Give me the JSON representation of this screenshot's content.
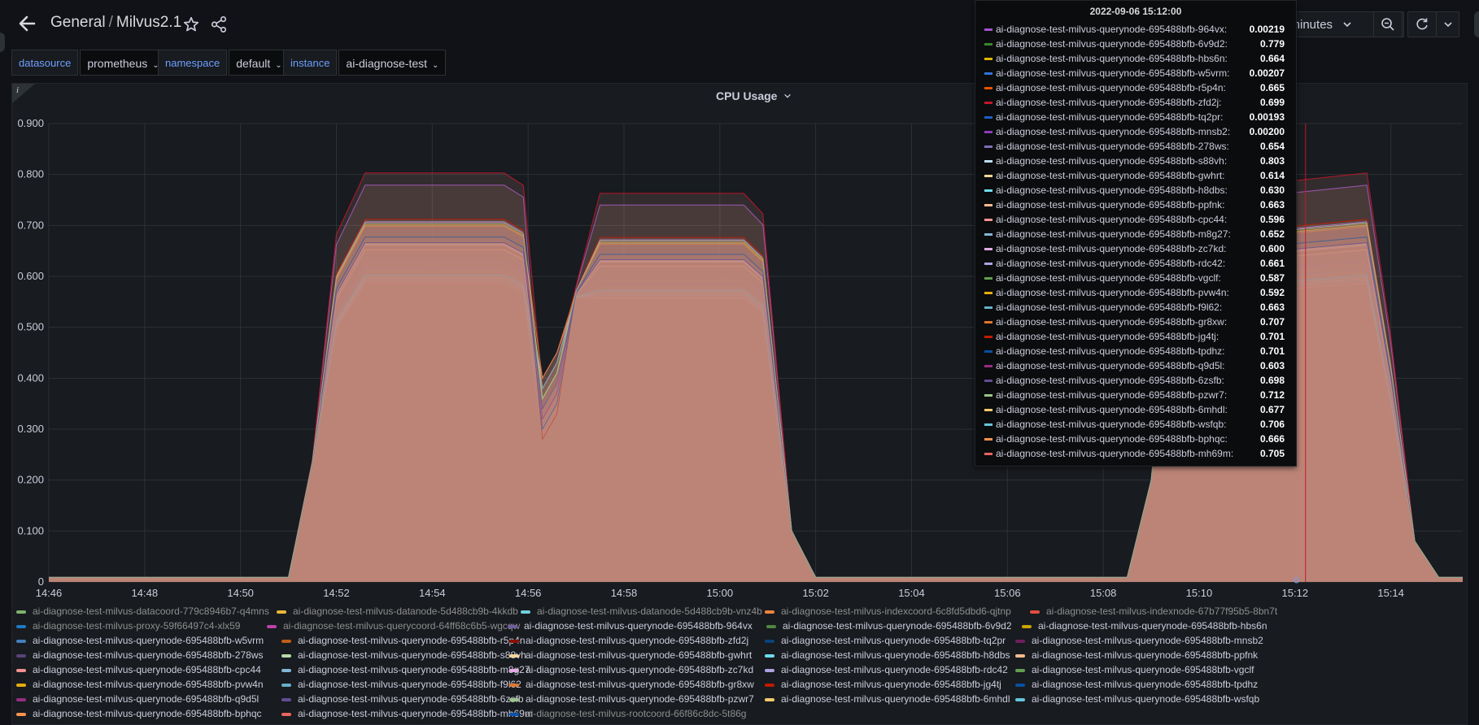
{
  "header": {
    "folder": "General",
    "dashboard": "Milvus2.1",
    "time_range_label": "0 minutes"
  },
  "variables": [
    {
      "label": "datasource",
      "value": "prometheus"
    },
    {
      "label": "namespace",
      "value": "default"
    },
    {
      "label": "instance",
      "value": "ai-diagnose-test"
    }
  ],
  "panel": {
    "title": "CPU Usage",
    "info": "i"
  },
  "colors": {
    "bg": "#111217",
    "panel": "#181b1f",
    "grid": "#2c3235",
    "fill": "#c28b7a",
    "cursor": "#c4162a"
  },
  "chart_data": {
    "type": "area",
    "title": "CPU Usage",
    "xlabel": "",
    "ylabel": "",
    "x_ticks": [
      "14:46",
      "14:48",
      "14:50",
      "14:52",
      "14:54",
      "14:56",
      "14:58",
      "15:00",
      "15:02",
      "15:04",
      "15:06",
      "15:08",
      "15:10",
      "15:12",
      "15:14"
    ],
    "y_ticks": [
      "0",
      "0.100",
      "0.200",
      "0.300",
      "0.400",
      "0.500",
      "0.600",
      "0.700",
      "0.800",
      "0.900"
    ],
    "ylim": [
      0,
      0.9
    ],
    "legend_position": "bottom",
    "cursor_time": "15:12",
    "tooltip": {
      "time": "2022-09-06 15:12:00",
      "rows": [
        {
          "name": "ai-diagnose-test-milvus-querynode-695488bfb-964vx:",
          "value": "0.00219",
          "color": "#a352cc"
        },
        {
          "name": "ai-diagnose-test-milvus-querynode-695488bfb-6v9d2:",
          "value": "0.779",
          "color": "#37872d"
        },
        {
          "name": "ai-diagnose-test-milvus-querynode-695488bfb-hbs6n:",
          "value": "0.664",
          "color": "#e0b400"
        },
        {
          "name": "ai-diagnose-test-milvus-querynode-695488bfb-w5vrm:",
          "value": "0.00207",
          "color": "#3274d9"
        },
        {
          "name": "ai-diagnose-test-milvus-querynode-695488bfb-r5p4n:",
          "value": "0.665",
          "color": "#e55400"
        },
        {
          "name": "ai-diagnose-test-milvus-querynode-695488bfb-zfd2j:",
          "value": "0.699",
          "color": "#c4162a"
        },
        {
          "name": "ai-diagnose-test-milvus-querynode-695488bfb-tq2pr:",
          "value": "0.00193",
          "color": "#1f60c4"
        },
        {
          "name": "ai-diagnose-test-milvus-querynode-695488bfb-mnsb2:",
          "value": "0.00200",
          "color": "#8f3bb8"
        },
        {
          "name": "ai-diagnose-test-milvus-querynode-695488bfb-278ws:",
          "value": "0.654",
          "color": "#806eb7"
        },
        {
          "name": "ai-diagnose-test-milvus-querynode-695488bfb-s88vh:",
          "value": "0.803",
          "color": "#badff4"
        },
        {
          "name": "ai-diagnose-test-milvus-querynode-695488bfb-gwhrt:",
          "value": "0.614",
          "color": "#f4d598"
        },
        {
          "name": "ai-diagnose-test-milvus-querynode-695488bfb-h8dbs:",
          "value": "0.630",
          "color": "#70dbed"
        },
        {
          "name": "ai-diagnose-test-milvus-querynode-695488bfb-ppfnk:",
          "value": "0.663",
          "color": "#f9ba8f"
        },
        {
          "name": "ai-diagnose-test-milvus-querynode-695488bfb-cpc44:",
          "value": "0.596",
          "color": "#f29191"
        },
        {
          "name": "ai-diagnose-test-milvus-querynode-695488bfb-m8g27:",
          "value": "0.652",
          "color": "#82b5d8"
        },
        {
          "name": "ai-diagnose-test-milvus-querynode-695488bfb-zc7kd:",
          "value": "0.600",
          "color": "#e5a8e2"
        },
        {
          "name": "ai-diagnose-test-milvus-querynode-695488bfb-rdc42:",
          "value": "0.661",
          "color": "#aea2e0"
        },
        {
          "name": "ai-diagnose-test-milvus-querynode-695488bfb-vgclf:",
          "value": "0.587",
          "color": "#629e51"
        },
        {
          "name": "ai-diagnose-test-milvus-querynode-695488bfb-pvw4n:",
          "value": "0.592",
          "color": "#e5ac0e"
        },
        {
          "name": "ai-diagnose-test-milvus-querynode-695488bfb-f9l62:",
          "value": "0.663",
          "color": "#64b0c8"
        },
        {
          "name": "ai-diagnose-test-milvus-querynode-695488bfb-gr8xw:",
          "value": "0.707",
          "color": "#e0752d"
        },
        {
          "name": "ai-diagnose-test-milvus-querynode-695488bfb-jg4tj:",
          "value": "0.701",
          "color": "#bf1b00"
        },
        {
          "name": "ai-diagnose-test-milvus-querynode-695488bfb-tpdhz:",
          "value": "0.701",
          "color": "#0a50a1"
        },
        {
          "name": "ai-diagnose-test-milvus-querynode-695488bfb-q9d5l:",
          "value": "0.603",
          "color": "#962d82"
        },
        {
          "name": "ai-diagnose-test-milvus-querynode-695488bfb-6zsfb:",
          "value": "0.698",
          "color": "#614d93"
        },
        {
          "name": "ai-diagnose-test-milvus-querynode-695488bfb-pzwr7:",
          "value": "0.712",
          "color": "#9ac48a"
        },
        {
          "name": "ai-diagnose-test-milvus-querynode-695488bfb-6mhdl:",
          "value": "0.677",
          "color": "#f2c96d"
        },
        {
          "name": "ai-diagnose-test-milvus-querynode-695488bfb-wsfqb:",
          "value": "0.706",
          "color": "#65c5db"
        },
        {
          "name": "ai-diagnose-test-milvus-querynode-695488bfb-bphqc:",
          "value": "0.666",
          "color": "#f9934e"
        },
        {
          "name": "ai-diagnose-test-milvus-querynode-695488bfb-mh69m:",
          "value": "0.705",
          "color": "#ea6460"
        }
      ]
    },
    "legend_rows": [
      [
        {
          "name": "ai-diagnose-test-milvus-datacoord-779c8946b7-q4mns",
          "color": "#7eb26d",
          "dim": true
        },
        {
          "name": "ai-diagnose-test-milvus-datanode-5d488cb9b-4kkdb",
          "color": "#eab839",
          "dim": true
        },
        {
          "name": "ai-diagnose-test-milvus-datanode-5d488cb9b-vnz4b",
          "color": "#6ed0e0",
          "dim": true
        },
        {
          "name": "ai-diagnose-test-milvus-indexcoord-6c8fd5dbd6-qjtnp",
          "color": "#ef843c",
          "dim": true
        },
        {
          "name": "ai-diagnose-test-milvus-indexnode-67b77f95b5-8bn7t",
          "color": "#e24d42",
          "dim": true
        }
      ],
      [
        {
          "name": "ai-diagnose-test-milvus-proxy-59f66497c4-xlx59",
          "color": "#1f78c1",
          "dim": true
        },
        {
          "name": "ai-diagnose-test-milvus-querycoord-64ff68c6b5-wgcqw",
          "color": "#ba43a9",
          "dim": true
        },
        {
          "name": "ai-diagnose-test-milvus-querynode-695488bfb-964vx",
          "color": "#705da0",
          "dim": false
        },
        {
          "name": "ai-diagnose-test-milvus-querynode-695488bfb-6v9d2",
          "color": "#508642",
          "dim": false
        },
        {
          "name": "ai-diagnose-test-milvus-querynode-695488bfb-hbs6n",
          "color": "#cca300",
          "dim": false
        }
      ],
      [
        {
          "name": "ai-diagnose-test-milvus-querynode-695488bfb-w5vrm",
          "color": "#447ebc",
          "dim": false
        },
        {
          "name": "ai-diagnose-test-milvus-querynode-695488bfb-r5p4n",
          "color": "#c15c17",
          "dim": false
        },
        {
          "name": "ai-diagnose-test-milvus-querynode-695488bfb-zfd2j",
          "color": "#890f02",
          "dim": false
        },
        {
          "name": "ai-diagnose-test-milvus-querynode-695488bfb-tq2pr",
          "color": "#0a437c",
          "dim": false
        },
        {
          "name": "ai-diagnose-test-milvus-querynode-695488bfb-mnsb2",
          "color": "#6d1f62",
          "dim": false
        }
      ],
      [
        {
          "name": "ai-diagnose-test-milvus-querynode-695488bfb-278ws",
          "color": "#584477",
          "dim": false
        },
        {
          "name": "ai-diagnose-test-milvus-querynode-695488bfb-s88vh",
          "color": "#b7dbab",
          "dim": false
        },
        {
          "name": "ai-diagnose-test-milvus-querynode-695488bfb-gwhrt",
          "color": "#f4d598",
          "dim": false
        },
        {
          "name": "ai-diagnose-test-milvus-querynode-695488bfb-h8dbs",
          "color": "#70dbed",
          "dim": false
        },
        {
          "name": "ai-diagnose-test-milvus-querynode-695488bfb-ppfnk",
          "color": "#f9ba8f",
          "dim": false
        }
      ],
      [
        {
          "name": "ai-diagnose-test-milvus-querynode-695488bfb-cpc44",
          "color": "#f29191",
          "dim": false
        },
        {
          "name": "ai-diagnose-test-milvus-querynode-695488bfb-m8g27",
          "color": "#82b5d8",
          "dim": false
        },
        {
          "name": "ai-diagnose-test-milvus-querynode-695488bfb-zc7kd",
          "color": "#e5a8e2",
          "dim": false
        },
        {
          "name": "ai-diagnose-test-milvus-querynode-695488bfb-rdc42",
          "color": "#aea2e0",
          "dim": false
        },
        {
          "name": "ai-diagnose-test-milvus-querynode-695488bfb-vgclf",
          "color": "#629e51",
          "dim": false
        }
      ],
      [
        {
          "name": "ai-diagnose-test-milvus-querynode-695488bfb-pvw4n",
          "color": "#e5ac0e",
          "dim": false
        },
        {
          "name": "ai-diagnose-test-milvus-querynode-695488bfb-f9l62",
          "color": "#64b0c8",
          "dim": false
        },
        {
          "name": "ai-diagnose-test-milvus-querynode-695488bfb-gr8xw",
          "color": "#e0752d",
          "dim": false
        },
        {
          "name": "ai-diagnose-test-milvus-querynode-695488bfb-jg4tj",
          "color": "#bf1b00",
          "dim": false
        },
        {
          "name": "ai-diagnose-test-milvus-querynode-695488bfb-tpdhz",
          "color": "#0a50a1",
          "dim": false
        }
      ],
      [
        {
          "name": "ai-diagnose-test-milvus-querynode-695488bfb-q9d5l",
          "color": "#962d82",
          "dim": false
        },
        {
          "name": "ai-diagnose-test-milvus-querynode-695488bfb-6zsfb",
          "color": "#614d93",
          "dim": false
        },
        {
          "name": "ai-diagnose-test-milvus-querynode-695488bfb-pzwr7",
          "color": "#9ac48a",
          "dim": false
        },
        {
          "name": "ai-diagnose-test-milvus-querynode-695488bfb-6mhdl",
          "color": "#f2c96d",
          "dim": false
        },
        {
          "name": "ai-diagnose-test-milvus-querynode-695488bfb-wsfqb",
          "color": "#65c5db",
          "dim": false
        }
      ],
      [
        {
          "name": "ai-diagnose-test-milvus-querynode-695488bfb-bphqc",
          "color": "#f9934e",
          "dim": false
        },
        {
          "name": "ai-diagnose-test-milvus-querynode-695488bfb-mh69m",
          "color": "#ea6460",
          "dim": false
        },
        {
          "name": "ai-diagnose-test-milvus-rootcoord-66f86c8dc-5t86g",
          "color": "#0752ad",
          "dim": true
        }
      ]
    ]
  }
}
